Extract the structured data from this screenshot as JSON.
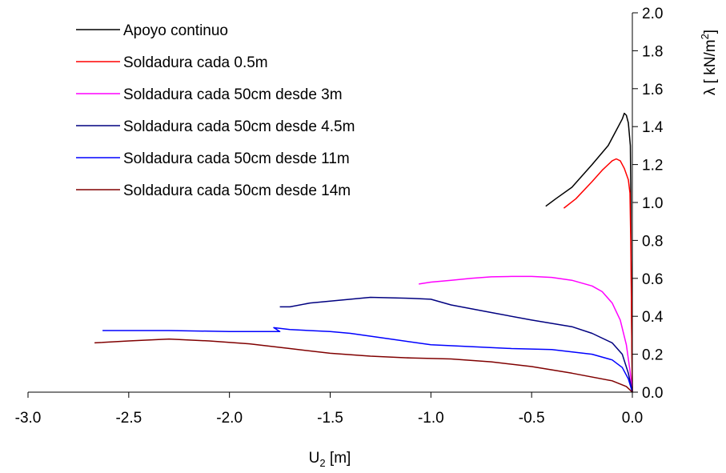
{
  "chart_data": {
    "type": "line",
    "title": "",
    "xlabel": "U₂ [m]",
    "xlabel_main": "U",
    "xlabel_sub": "2",
    "xlabel_unit": " [m]",
    "ylabel": "λ [ kN/m²]",
    "ylabel_main": "λ [ kN/m",
    "ylabel_sup": "2",
    "ylabel_end": "]",
    "xlim": [
      -3.0,
      0.0
    ],
    "ylim": [
      0.0,
      2.0
    ],
    "x_ticks": [
      -3.0,
      -2.5,
      -2.0,
      -1.5,
      -1.0,
      -0.5,
      0.0
    ],
    "x_tick_labels": [
      "-3.0",
      "-2.5",
      "-2.0",
      "-1.5",
      "-1.0",
      "-0.5",
      "0.0"
    ],
    "y_ticks": [
      0.0,
      0.2,
      0.4,
      0.6,
      0.8,
      1.0,
      1.2,
      1.4,
      1.6,
      1.8,
      2.0
    ],
    "y_tick_labels": [
      "0.0",
      "0.2",
      "0.4",
      "0.6",
      "0.8",
      "1.0",
      "1.2",
      "1.4",
      "1.6",
      "1.8",
      "2.0"
    ],
    "y_axis_side": "right",
    "grid": false,
    "legend_position": "top-left",
    "series": [
      {
        "name": "Apoyo continuo",
        "color": "#000000",
        "points": [
          [
            0,
            0
          ],
          [
            -0.003,
            0.3
          ],
          [
            -0.006,
            0.7
          ],
          [
            -0.008,
            1.1
          ],
          [
            -0.01,
            1.3
          ],
          [
            -0.02,
            1.42
          ],
          [
            -0.03,
            1.46
          ],
          [
            -0.04,
            1.47
          ],
          [
            -0.05,
            1.44
          ],
          [
            -0.08,
            1.38
          ],
          [
            -0.12,
            1.3
          ],
          [
            -0.2,
            1.2
          ],
          [
            -0.3,
            1.08
          ],
          [
            -0.38,
            1.02
          ],
          [
            -0.43,
            0.98
          ]
        ]
      },
      {
        "name": "Soldadura cada 0.5m",
        "color": "#ff0000",
        "points": [
          [
            0,
            0
          ],
          [
            -0.004,
            0.4
          ],
          [
            -0.008,
            0.8
          ],
          [
            -0.012,
            1.05
          ],
          [
            -0.02,
            1.12
          ],
          [
            -0.04,
            1.18
          ],
          [
            -0.06,
            1.22
          ],
          [
            -0.08,
            1.23
          ],
          [
            -0.1,
            1.22
          ],
          [
            -0.15,
            1.17
          ],
          [
            -0.2,
            1.11
          ],
          [
            -0.28,
            1.02
          ],
          [
            -0.34,
            0.97
          ]
        ]
      },
      {
        "name": "Soldadura cada 50cm desde 3m",
        "color": "#ff00ff",
        "points": [
          [
            0,
            0
          ],
          [
            -0.01,
            0.1
          ],
          [
            -0.03,
            0.25
          ],
          [
            -0.06,
            0.38
          ],
          [
            -0.1,
            0.47
          ],
          [
            -0.15,
            0.53
          ],
          [
            -0.2,
            0.56
          ],
          [
            -0.3,
            0.59
          ],
          [
            -0.4,
            0.605
          ],
          [
            -0.5,
            0.61
          ],
          [
            -0.6,
            0.61
          ],
          [
            -0.7,
            0.608
          ],
          [
            -0.8,
            0.6
          ],
          [
            -0.9,
            0.59
          ],
          [
            -1.0,
            0.58
          ],
          [
            -1.06,
            0.57
          ]
        ]
      },
      {
        "name": "Soldadura cada 50cm desde 4.5m",
        "color": "#000080",
        "points": [
          [
            0,
            0
          ],
          [
            -0.02,
            0.1
          ],
          [
            -0.05,
            0.2
          ],
          [
            -0.1,
            0.26
          ],
          [
            -0.2,
            0.31
          ],
          [
            -0.3,
            0.345
          ],
          [
            -0.5,
            0.38
          ],
          [
            -0.7,
            0.42
          ],
          [
            -0.9,
            0.46
          ],
          [
            -1.0,
            0.49
          ],
          [
            -1.1,
            0.495
          ],
          [
            -1.3,
            0.5
          ],
          [
            -1.4,
            0.49
          ],
          [
            -1.5,
            0.48
          ],
          [
            -1.6,
            0.47
          ],
          [
            -1.7,
            0.45
          ],
          [
            -1.75,
            0.45
          ]
        ]
      },
      {
        "name": "Soldadura cada 50cm desde 11m",
        "color": "#0000ff",
        "points": [
          [
            0,
            0
          ],
          [
            -0.02,
            0.07
          ],
          [
            -0.05,
            0.13
          ],
          [
            -0.1,
            0.17
          ],
          [
            -0.2,
            0.2
          ],
          [
            -0.4,
            0.225
          ],
          [
            -0.6,
            0.23
          ],
          [
            -0.8,
            0.24
          ],
          [
            -1.0,
            0.25
          ],
          [
            -1.2,
            0.28
          ],
          [
            -1.4,
            0.31
          ],
          [
            -1.5,
            0.32
          ],
          [
            -1.7,
            0.33
          ],
          [
            -1.78,
            0.34
          ],
          [
            -1.75,
            0.32
          ],
          [
            -2.0,
            0.32
          ],
          [
            -2.3,
            0.325
          ],
          [
            -2.6,
            0.325
          ],
          [
            -2.63,
            0.325
          ]
        ]
      },
      {
        "name": "Soldadura cada 50cm desde 14m",
        "color": "#800000",
        "points": [
          [
            0,
            0
          ],
          [
            -0.03,
            0.03
          ],
          [
            -0.1,
            0.06
          ],
          [
            -0.3,
            0.1
          ],
          [
            -0.5,
            0.135
          ],
          [
            -0.7,
            0.16
          ],
          [
            -0.9,
            0.175
          ],
          [
            -1.1,
            0.18
          ],
          [
            -1.3,
            0.19
          ],
          [
            -1.5,
            0.205
          ],
          [
            -1.7,
            0.23
          ],
          [
            -1.9,
            0.255
          ],
          [
            -2.1,
            0.27
          ],
          [
            -2.3,
            0.28
          ],
          [
            -2.5,
            0.27
          ],
          [
            -2.67,
            0.26
          ]
        ]
      }
    ]
  }
}
